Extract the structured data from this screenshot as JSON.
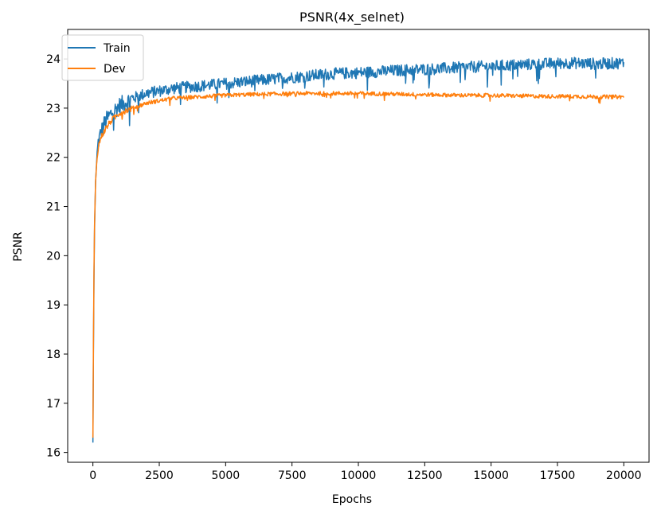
{
  "chart_data": {
    "type": "line",
    "title": "PSNR(4x_selnet)",
    "xlabel": "Epochs",
    "ylabel": "PSNR",
    "xlim": [
      -950,
      20950
    ],
    "ylim": [
      15.8,
      24.6
    ],
    "xticks": [
      0,
      2500,
      5000,
      7500,
      10000,
      12500,
      15000,
      17500,
      20000
    ],
    "yticks": [
      16,
      17,
      18,
      19,
      20,
      21,
      22,
      23,
      24
    ],
    "legend": "top-left",
    "grid": false,
    "series": [
      {
        "name": "Train",
        "color": "#1f77b4",
        "x": [
          0,
          30,
          60,
          100,
          150,
          200,
          300,
          400,
          500,
          700,
          1000,
          1500,
          2000,
          2500,
          3000,
          4000,
          5000,
          6000,
          7000,
          8000,
          9000,
          10000,
          11000,
          12000,
          13000,
          14000,
          15000,
          16000,
          17000,
          18000,
          19000,
          20000
        ],
        "y": [
          16.2,
          19.0,
          20.5,
          21.5,
          22.0,
          22.3,
          22.5,
          22.65,
          22.75,
          22.9,
          23.05,
          23.2,
          23.3,
          23.35,
          23.4,
          23.45,
          23.5,
          23.55,
          23.6,
          23.65,
          23.7,
          23.72,
          23.75,
          23.78,
          23.8,
          23.83,
          23.85,
          23.88,
          23.9,
          23.92,
          23.9,
          23.92
        ],
        "noise": 0.12
      },
      {
        "name": "Dev",
        "color": "#ff7f0e",
        "x": [
          0,
          30,
          60,
          100,
          150,
          200,
          300,
          400,
          500,
          700,
          1000,
          1500,
          2000,
          2500,
          3000,
          4000,
          5000,
          6000,
          7000,
          8000,
          9000,
          10000,
          11000,
          12000,
          13000,
          14000,
          15000,
          16000,
          17000,
          18000,
          19000,
          20000
        ],
        "y": [
          16.3,
          19.2,
          20.6,
          21.5,
          21.95,
          22.2,
          22.4,
          22.5,
          22.6,
          22.75,
          22.9,
          23.0,
          23.1,
          23.15,
          23.2,
          23.23,
          23.26,
          23.28,
          23.29,
          23.3,
          23.3,
          23.3,
          23.29,
          23.28,
          23.27,
          23.26,
          23.26,
          23.25,
          23.24,
          23.24,
          23.23,
          23.23
        ],
        "noise": 0.04
      }
    ]
  }
}
